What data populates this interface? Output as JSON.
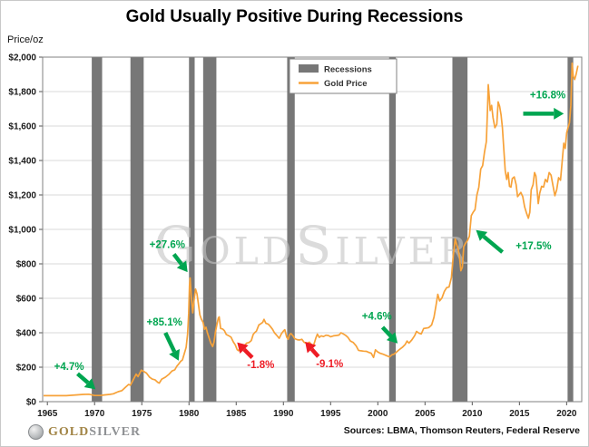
{
  "page": {
    "title": "Gold Usually Positive During Recessions",
    "y_axis_unit_label": "Price/oz",
    "watermark": "GoldSilver",
    "footer": {
      "logo_gold": "GOLD",
      "logo_silver": "SILVER",
      "sources": "Sources: LBMA, Thomson Reuters, Federal Reserve"
    }
  },
  "colors": {
    "gold_line": "#F7A239",
    "recession_band": "#777777",
    "positive_green": "#00A550",
    "negative_red": "#EE1C25",
    "gridline": "#D9D9D9",
    "axis_text": "#1A1A1A",
    "watermark": "#C4C4C4",
    "plot_border": "#808080"
  },
  "chart_data": {
    "type": "line",
    "title": "Gold Usually Positive During Recessions",
    "ylabel": "Price/oz",
    "xlim": [
      1964.5,
      2021.6
    ],
    "ylim": [
      0,
      2000
    ],
    "grid": "horizontal",
    "x_ticks": [
      1965,
      1970,
      1975,
      1980,
      1985,
      1990,
      1995,
      2000,
      2005,
      2010,
      2015,
      2020
    ],
    "x_tick_labels": [
      "1965",
      "1970",
      "1975",
      "1980",
      "1985",
      "1990",
      "1995",
      "2000",
      "2005",
      "2010",
      "2015",
      "2020"
    ],
    "y_ticks": [
      0,
      200,
      400,
      600,
      800,
      1000,
      1200,
      1400,
      1600,
      1800,
      2000
    ],
    "y_tick_labels": [
      "$0",
      "$200",
      "$400",
      "$600",
      "$800",
      "$1,000",
      "$1,200",
      "$1,400",
      "$1,600",
      "$1,800",
      "$2,000"
    ],
    "legend": {
      "position": "top-center",
      "entries": [
        {
          "label": "Recessions",
          "swatch": "band"
        },
        {
          "label": "Gold Price",
          "swatch": "line"
        }
      ]
    },
    "recessions": [
      [
        1969.7,
        1970.8
      ],
      [
        1973.8,
        1975.2
      ],
      [
        1980.0,
        1980.6
      ],
      [
        1981.5,
        1982.9
      ],
      [
        1990.4,
        1991.2
      ],
      [
        2001.2,
        2001.9
      ],
      [
        2007.9,
        2009.5
      ],
      [
        2020.1,
        2020.7
      ]
    ],
    "annotations": [
      {
        "label": "+4.7%",
        "direction": "up",
        "text_at": [
          1967.3,
          205
        ],
        "arrow_from": [
          1968.2,
          162
        ],
        "arrow_to": [
          1970.1,
          72
        ]
      },
      {
        "label": "+85.1%",
        "direction": "up",
        "text_at": [
          1977.4,
          462
        ],
        "arrow_from": [
          1977.5,
          400
        ],
        "arrow_to": [
          1978.9,
          238
        ]
      },
      {
        "label": "+27.6%",
        "direction": "up",
        "text_at": [
          1977.7,
          912
        ],
        "arrow_from": [
          1978.4,
          856
        ],
        "arrow_to": [
          1979.85,
          752
        ]
      },
      {
        "label": "-1.8%",
        "direction": "down",
        "text_at": [
          1987.6,
          215
        ],
        "arrow_from": [
          1986.7,
          256
        ],
        "arrow_to": [
          1985.1,
          344
        ]
      },
      {
        "label": "-9.1%",
        "direction": "down",
        "text_at": [
          1994.9,
          222
        ],
        "arrow_from": [
          1993.7,
          262
        ],
        "arrow_to": [
          1992.3,
          348
        ]
      },
      {
        "label": "+4.6%",
        "direction": "up",
        "text_at": [
          1999.9,
          498
        ],
        "arrow_from": [
          2000.5,
          432
        ],
        "arrow_to": [
          2002.1,
          338
        ]
      },
      {
        "label": "+17.5%",
        "direction": "up",
        "text_at": [
          2016.5,
          905
        ],
        "arrow_from": [
          2013.2,
          868
        ],
        "arrow_to": [
          2010.4,
          996
        ]
      },
      {
        "label": "+16.8%",
        "direction": "up",
        "text_at": [
          2018.0,
          1782
        ],
        "arrow_from": [
          2015.4,
          1672
        ],
        "arrow_to": [
          2019.7,
          1672
        ]
      }
    ],
    "series": [
      {
        "name": "Gold Price",
        "points": [
          [
            1964.6,
            35
          ],
          [
            1966,
            35
          ],
          [
            1967,
            35
          ],
          [
            1968,
            39
          ],
          [
            1968.8,
            42
          ],
          [
            1969.4,
            43
          ],
          [
            1970,
            36
          ],
          [
            1970.6,
            36
          ],
          [
            1971,
            39
          ],
          [
            1971.6,
            42
          ],
          [
            1972,
            46
          ],
          [
            1972.5,
            58
          ],
          [
            1972.9,
            64
          ],
          [
            1973.3,
            85
          ],
          [
            1973.6,
            100
          ],
          [
            1973.8,
            95
          ],
          [
            1974.1,
            128
          ],
          [
            1974.4,
            160
          ],
          [
            1974.6,
            145
          ],
          [
            1974.95,
            183
          ],
          [
            1975.2,
            176
          ],
          [
            1975.5,
            166
          ],
          [
            1975.8,
            143
          ],
          [
            1976.1,
            131
          ],
          [
            1976.4,
            127
          ],
          [
            1976.7,
            112
          ],
          [
            1976.85,
            108
          ],
          [
            1977.1,
            130
          ],
          [
            1977.5,
            142
          ],
          [
            1977.9,
            160
          ],
          [
            1978.2,
            178
          ],
          [
            1978.5,
            185
          ],
          [
            1978.7,
            205
          ],
          [
            1978.9,
            218
          ],
          [
            1979.1,
            233
          ],
          [
            1979.3,
            242
          ],
          [
            1979.5,
            278
          ],
          [
            1979.7,
            315
          ],
          [
            1979.85,
            392
          ],
          [
            1979.97,
            512
          ],
          [
            1980.05,
            675
          ],
          [
            1980.12,
            718
          ],
          [
            1980.25,
            610
          ],
          [
            1980.4,
            516
          ],
          [
            1980.55,
            598
          ],
          [
            1980.7,
            653
          ],
          [
            1980.85,
            625
          ],
          [
            1981.0,
            568
          ],
          [
            1981.15,
            505
          ],
          [
            1981.3,
            480
          ],
          [
            1981.5,
            460
          ],
          [
            1981.65,
            420
          ],
          [
            1981.8,
            432
          ],
          [
            1981.95,
            400
          ],
          [
            1982.1,
            375
          ],
          [
            1982.3,
            340
          ],
          [
            1982.5,
            320
          ],
          [
            1982.65,
            345
          ],
          [
            1982.8,
            405
          ],
          [
            1982.95,
            445
          ],
          [
            1983.1,
            485
          ],
          [
            1983.2,
            492
          ],
          [
            1983.35,
            425
          ],
          [
            1983.55,
            422
          ],
          [
            1983.75,
            412
          ],
          [
            1983.95,
            390
          ],
          [
            1984.2,
            383
          ],
          [
            1984.45,
            375
          ],
          [
            1984.7,
            347
          ],
          [
            1984.9,
            330
          ],
          [
            1985.1,
            302
          ],
          [
            1985.25,
            295
          ],
          [
            1985.45,
            320
          ],
          [
            1985.65,
            325
          ],
          [
            1985.9,
            327
          ],
          [
            1986.1,
            340
          ],
          [
            1986.35,
            343
          ],
          [
            1986.6,
            355
          ],
          [
            1986.8,
            390
          ],
          [
            1986.95,
            400
          ],
          [
            1987.15,
            410
          ],
          [
            1987.4,
            445
          ],
          [
            1987.6,
            452
          ],
          [
            1987.8,
            460
          ],
          [
            1987.95,
            478
          ],
          [
            1988.15,
            455
          ],
          [
            1988.4,
            450
          ],
          [
            1988.6,
            438
          ],
          [
            1988.85,
            420
          ],
          [
            1989.05,
            400
          ],
          [
            1989.3,
            385
          ],
          [
            1989.55,
            368
          ],
          [
            1989.8,
            395
          ],
          [
            1990.0,
            410
          ],
          [
            1990.15,
            418
          ],
          [
            1990.35,
            375
          ],
          [
            1990.5,
            362
          ],
          [
            1990.65,
            388
          ],
          [
            1990.8,
            395
          ],
          [
            1991.0,
            383
          ],
          [
            1991.2,
            366
          ],
          [
            1991.45,
            360
          ],
          [
            1991.7,
            358
          ],
          [
            1991.95,
            362
          ],
          [
            1992.2,
            344
          ],
          [
            1992.5,
            338
          ],
          [
            1992.75,
            345
          ],
          [
            1993.0,
            330
          ],
          [
            1993.2,
            328
          ],
          [
            1993.45,
            372
          ],
          [
            1993.6,
            392
          ],
          [
            1993.8,
            373
          ],
          [
            1994.0,
            382
          ],
          [
            1994.25,
            378
          ],
          [
            1994.5,
            386
          ],
          [
            1994.75,
            384
          ],
          [
            1995.0,
            377
          ],
          [
            1995.3,
            382
          ],
          [
            1995.6,
            384
          ],
          [
            1995.9,
            387
          ],
          [
            1996.1,
            400
          ],
          [
            1996.35,
            393
          ],
          [
            1996.6,
            385
          ],
          [
            1996.85,
            372
          ],
          [
            1997.1,
            352
          ],
          [
            1997.4,
            343
          ],
          [
            1997.7,
            324
          ],
          [
            1997.95,
            298
          ],
          [
            1998.2,
            295
          ],
          [
            1998.5,
            293
          ],
          [
            1998.8,
            292
          ],
          [
            1999.05,
            286
          ],
          [
            1999.3,
            281
          ],
          [
            1999.55,
            257
          ],
          [
            1999.75,
            301
          ],
          [
            1999.95,
            290
          ],
          [
            2000.2,
            282
          ],
          [
            2000.5,
            277
          ],
          [
            2000.8,
            270
          ],
          [
            2001.05,
            264
          ],
          [
            2001.25,
            260
          ],
          [
            2001.5,
            272
          ],
          [
            2001.75,
            277
          ],
          [
            2002.0,
            289
          ],
          [
            2002.3,
            303
          ],
          [
            2002.6,
            315
          ],
          [
            2002.9,
            332
          ],
          [
            2003.1,
            352
          ],
          [
            2003.3,
            340
          ],
          [
            2003.6,
            358
          ],
          [
            2003.9,
            383
          ],
          [
            2004.1,
            408
          ],
          [
            2004.35,
            398
          ],
          [
            2004.6,
            393
          ],
          [
            2004.85,
            425
          ],
          [
            2005.1,
            427
          ],
          [
            2005.4,
            430
          ],
          [
            2005.7,
            445
          ],
          [
            2005.95,
            490
          ],
          [
            2006.15,
            555
          ],
          [
            2006.35,
            623
          ],
          [
            2006.55,
            585
          ],
          [
            2006.8,
            602
          ],
          [
            2007.05,
            640
          ],
          [
            2007.3,
            662
          ],
          [
            2007.55,
            665
          ],
          [
            2007.8,
            720
          ],
          [
            2008.0,
            850
          ],
          [
            2008.2,
            945
          ],
          [
            2008.35,
            912
          ],
          [
            2008.5,
            888
          ],
          [
            2008.65,
            840
          ],
          [
            2008.8,
            760
          ],
          [
            2008.95,
            780
          ],
          [
            2009.1,
            900
          ],
          [
            2009.3,
            920
          ],
          [
            2009.5,
            935
          ],
          [
            2009.7,
            960
          ],
          [
            2009.9,
            1080
          ],
          [
            2010.1,
            1100
          ],
          [
            2010.3,
            1115
          ],
          [
            2010.5,
            1200
          ],
          [
            2010.7,
            1245
          ],
          [
            2010.9,
            1350
          ],
          [
            2011.1,
            1370
          ],
          [
            2011.3,
            1450
          ],
          [
            2011.5,
            1510
          ],
          [
            2011.62,
            1700
          ],
          [
            2011.7,
            1840
          ],
          [
            2011.8,
            1770
          ],
          [
            2011.9,
            1690
          ],
          [
            2012.05,
            1720
          ],
          [
            2012.2,
            1650
          ],
          [
            2012.4,
            1590
          ],
          [
            2012.6,
            1610
          ],
          [
            2012.75,
            1740
          ],
          [
            2012.9,
            1715
          ],
          [
            2013.05,
            1665
          ],
          [
            2013.2,
            1590
          ],
          [
            2013.35,
            1460
          ],
          [
            2013.5,
            1340
          ],
          [
            2013.65,
            1290
          ],
          [
            2013.8,
            1330
          ],
          [
            2013.95,
            1250
          ],
          [
            2014.1,
            1245
          ],
          [
            2014.25,
            1295
          ],
          [
            2014.45,
            1305
          ],
          [
            2014.65,
            1260
          ],
          [
            2014.8,
            1190
          ],
          [
            2014.95,
            1200
          ],
          [
            2015.15,
            1215
          ],
          [
            2015.35,
            1190
          ],
          [
            2015.55,
            1130
          ],
          [
            2015.75,
            1095
          ],
          [
            2015.95,
            1065
          ],
          [
            2016.1,
            1100
          ],
          [
            2016.25,
            1230
          ],
          [
            2016.45,
            1260
          ],
          [
            2016.6,
            1330
          ],
          [
            2016.75,
            1310
          ],
          [
            2016.9,
            1210
          ],
          [
            2017.0,
            1150
          ],
          [
            2017.15,
            1210
          ],
          [
            2017.35,
            1250
          ],
          [
            2017.55,
            1245
          ],
          [
            2017.75,
            1290
          ],
          [
            2017.95,
            1275
          ],
          [
            2018.15,
            1330
          ],
          [
            2018.35,
            1315
          ],
          [
            2018.55,
            1255
          ],
          [
            2018.75,
            1195
          ],
          [
            2018.95,
            1230
          ],
          [
            2019.15,
            1300
          ],
          [
            2019.35,
            1285
          ],
          [
            2019.55,
            1410
          ],
          [
            2019.7,
            1500
          ],
          [
            2019.85,
            1470
          ],
          [
            2020.0,
            1560
          ],
          [
            2020.15,
            1590
          ],
          [
            2020.3,
            1620
          ],
          [
            2020.45,
            1720
          ],
          [
            2020.58,
            1965
          ],
          [
            2020.7,
            1890
          ],
          [
            2020.85,
            1870
          ],
          [
            2021.0,
            1900
          ],
          [
            2021.2,
            1950
          ]
        ]
      }
    ]
  }
}
